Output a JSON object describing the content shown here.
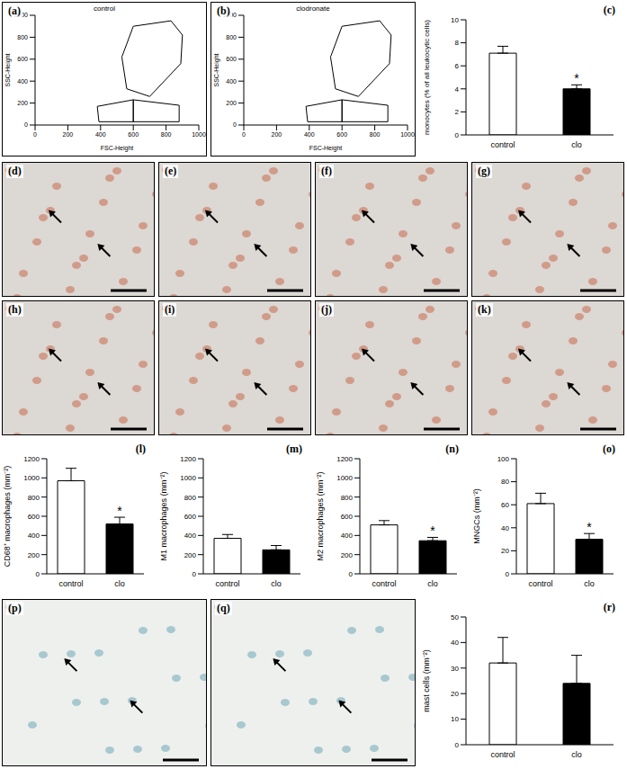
{
  "chart_data": [
    {
      "panel_label": "(a)",
      "type": "scatter",
      "title": "control",
      "x_label": "FSC-Height",
      "y_label": "SSC-Height",
      "xlim": [
        0,
        1000
      ],
      "ylim": [
        0,
        1000
      ],
      "xticks": [
        0,
        200,
        400,
        600,
        800,
        1000
      ],
      "yticks": [
        0,
        200,
        400,
        600,
        800,
        1000
      ],
      "gates": [
        {
          "color": "#000000",
          "points": [
            [
              560,
              330
            ],
            [
              530,
              620
            ],
            [
              600,
              900
            ],
            [
              830,
              950
            ],
            [
              900,
              820
            ],
            [
              890,
              560
            ],
            [
              700,
              260
            ],
            [
              560,
              330
            ]
          ]
        },
        {
          "color": "#000000",
          "points": [
            [
              390,
              30
            ],
            [
              600,
              30
            ],
            [
              600,
              230
            ],
            [
              380,
              170
            ],
            [
              390,
              30
            ]
          ]
        },
        {
          "color": "#000000",
          "points": [
            [
              600,
              30
            ],
            [
              880,
              30
            ],
            [
              880,
              180
            ],
            [
              600,
              230
            ],
            [
              600,
              30
            ]
          ]
        }
      ]
    },
    {
      "panel_label": "(b)",
      "type": "scatter",
      "title": "clodronate",
      "x_label": "FSC-Height",
      "y_label": "SSC-Height",
      "xlim": [
        0,
        1000
      ],
      "ylim": [
        0,
        1000
      ],
      "xticks": [
        0,
        200,
        400,
        600,
        800,
        1000
      ],
      "yticks": [
        0,
        200,
        400,
        600,
        800,
        1000
      ],
      "gates": [
        {
          "color": "#000000",
          "points": [
            [
              560,
              330
            ],
            [
              530,
              620
            ],
            [
              600,
              900
            ],
            [
              830,
              950
            ],
            [
              900,
              820
            ],
            [
              890,
              560
            ],
            [
              700,
              260
            ],
            [
              560,
              330
            ]
          ]
        },
        {
          "color": "#000000",
          "points": [
            [
              390,
              30
            ],
            [
              600,
              30
            ],
            [
              600,
              230
            ],
            [
              380,
              170
            ],
            [
              390,
              30
            ]
          ]
        },
        {
          "color": "#000000",
          "points": [
            [
              600,
              30
            ],
            [
              880,
              30
            ],
            [
              880,
              180
            ],
            [
              600,
              230
            ],
            [
              600,
              30
            ]
          ]
        }
      ]
    },
    {
      "panel_label": "(c)",
      "type": "bar",
      "y_label": "monocytes (% of all leukocytic cells)",
      "categories": [
        "control",
        "clo"
      ],
      "values": [
        7.1,
        4.0
      ],
      "errors": [
        0.6,
        0.35
      ],
      "colors": [
        "#ffffff",
        "#000000"
      ],
      "value_annotations": [
        null,
        "*"
      ],
      "ylim": [
        0,
        10
      ],
      "yticks": [
        0,
        2,
        4,
        6,
        8,
        10
      ]
    },
    {
      "panel_label": "(l)",
      "type": "bar",
      "y_label": "CD68⁺ macrophages (mm⁻²)",
      "categories": [
        "control",
        "clo"
      ],
      "values": [
        970,
        520
      ],
      "errors": [
        130,
        70
      ],
      "colors": [
        "#ffffff",
        "#000000"
      ],
      "value_annotations": [
        null,
        "*"
      ],
      "ylim": [
        0,
        1200
      ],
      "yticks": [
        0,
        200,
        400,
        600,
        800,
        1000,
        1200
      ]
    },
    {
      "panel_label": "(m)",
      "type": "bar",
      "y_label": "M1 macrophages (mm⁻²)",
      "categories": [
        "control",
        "clo"
      ],
      "values": [
        370,
        250
      ],
      "errors": [
        40,
        45
      ],
      "colors": [
        "#ffffff",
        "#000000"
      ],
      "value_annotations": [
        null,
        null
      ],
      "ylim": [
        0,
        1200
      ],
      "yticks": [
        0,
        200,
        400,
        600,
        800,
        1000,
        1200
      ]
    },
    {
      "panel_label": "(n)",
      "type": "bar",
      "y_label": "M2 macrophages (mm⁻²)",
      "categories": [
        "control",
        "clo"
      ],
      "values": [
        510,
        345
      ],
      "errors": [
        45,
        35
      ],
      "colors": [
        "#ffffff",
        "#000000"
      ],
      "value_annotations": [
        null,
        "*"
      ],
      "ylim": [
        0,
        1200
      ],
      "yticks": [
        0,
        200,
        400,
        600,
        800,
        1000,
        1200
      ]
    },
    {
      "panel_label": "(o)",
      "type": "bar",
      "y_label": "MNGCs (mm⁻²)",
      "categories": [
        "control",
        "clo"
      ],
      "values": [
        61,
        30
      ],
      "errors": [
        9,
        5
      ],
      "colors": [
        "#ffffff",
        "#000000"
      ],
      "value_annotations": [
        null,
        "*"
      ],
      "ylim": [
        0,
        100
      ],
      "yticks": [
        0,
        20,
        40,
        60,
        80,
        100
      ]
    },
    {
      "panel_label": "(r)",
      "type": "bar",
      "y_label": "mast cells (mm⁻²)",
      "categories": [
        "control",
        "clo"
      ],
      "values": [
        32,
        24
      ],
      "errors": [
        10,
        11
      ],
      "colors": [
        "#ffffff",
        "#000000"
      ],
      "value_annotations": [
        null,
        null
      ],
      "ylim": [
        0,
        50
      ],
      "yticks": [
        0,
        10,
        20,
        30,
        40,
        50
      ]
    }
  ],
  "images": [
    {
      "label": "(d)"
    },
    {
      "label": "(e)"
    },
    {
      "label": "(f)"
    },
    {
      "label": "(g)"
    },
    {
      "label": "(h)"
    },
    {
      "label": "(i)"
    },
    {
      "label": "(j)"
    },
    {
      "label": "(k)"
    },
    {
      "label": "(p)"
    },
    {
      "label": "(q)"
    }
  ]
}
